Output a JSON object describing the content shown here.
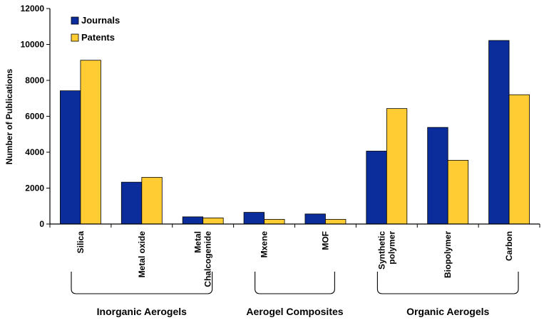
{
  "chart_data": {
    "type": "bar",
    "ylabel": "Number of Publications",
    "ylim": [
      0,
      12000
    ],
    "yticks": [
      0,
      2000,
      4000,
      6000,
      8000,
      10000,
      12000
    ],
    "categories": [
      "Silica",
      "Metal oxide",
      "Metal\nChalcogenide",
      "Mxene",
      "MOF",
      "Synthetic\npolymer",
      "Biopolymer",
      "Carbon"
    ],
    "series": [
      {
        "name": "Journals",
        "color": "#0a2d9b",
        "values": [
          7420,
          2330,
          400,
          650,
          560,
          4060,
          5380,
          10220
        ]
      },
      {
        "name": "Patents",
        "color": "#ffcc33",
        "values": [
          9120,
          2600,
          340,
          260,
          260,
          6430,
          3550,
          7200
        ]
      }
    ],
    "legend": "top-left",
    "grid": false,
    "groups": [
      {
        "label": "Inorganic Aerogels",
        "from": 0,
        "to": 2
      },
      {
        "label": "Aerogel Composites",
        "from": 3,
        "to": 4
      },
      {
        "label": "Organic Aerogels",
        "from": 5,
        "to": 7
      }
    ]
  }
}
